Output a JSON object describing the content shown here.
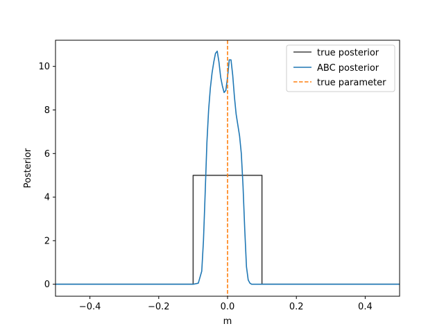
{
  "chart_data": {
    "type": "line",
    "xlabel": "m",
    "ylabel": "Posterior",
    "xlim": [
      -0.5,
      0.5
    ],
    "ylim": [
      -0.55,
      11.2
    ],
    "xticks": [
      -0.4,
      -0.2,
      0.0,
      0.2,
      0.4
    ],
    "xtick_labels": [
      "−0.4",
      "−0.2",
      "0.0",
      "0.2",
      "0.4"
    ],
    "yticks": [
      0,
      2,
      4,
      6,
      8,
      10
    ],
    "ytick_labels": [
      "0",
      "2",
      "4",
      "6",
      "8",
      "10"
    ],
    "grid": false,
    "legend_position": "top-right",
    "series": [
      {
        "name": "true posterior",
        "color": "#404040",
        "style": "solid",
        "x": [
          -0.5,
          -0.1,
          -0.1,
          0.1,
          0.1,
          0.5
        ],
        "y": [
          0,
          0,
          5,
          5,
          0,
          0
        ]
      },
      {
        "name": "ABC posterior",
        "color": "#1f77b4",
        "style": "solid",
        "x": [
          -0.5,
          -0.1,
          -0.085,
          -0.075,
          -0.07,
          -0.065,
          -0.06,
          -0.055,
          -0.05,
          -0.045,
          -0.04,
          -0.035,
          -0.03,
          -0.025,
          -0.02,
          -0.015,
          -0.01,
          -0.005,
          0.0,
          0.005,
          0.01,
          0.015,
          0.02,
          0.025,
          0.03,
          0.035,
          0.04,
          0.045,
          0.05,
          0.055,
          0.06,
          0.065,
          0.07,
          0.075,
          0.085,
          0.1,
          0.5
        ],
        "y": [
          0,
          0,
          0.05,
          0.6,
          2.0,
          4.2,
          6.5,
          8.0,
          9.0,
          9.7,
          10.2,
          10.6,
          10.7,
          10.2,
          9.5,
          9.1,
          8.8,
          8.9,
          9.5,
          10.3,
          10.3,
          9.6,
          8.6,
          7.8,
          7.3,
          6.8,
          6.0,
          4.5,
          2.5,
          0.8,
          0.2,
          0.05,
          0.0,
          0.0,
          0.0,
          0.0,
          0.0
        ]
      },
      {
        "name": "true parameter",
        "color": "#ff7f0e",
        "style": "dashed",
        "vline": 0.0
      }
    ]
  }
}
